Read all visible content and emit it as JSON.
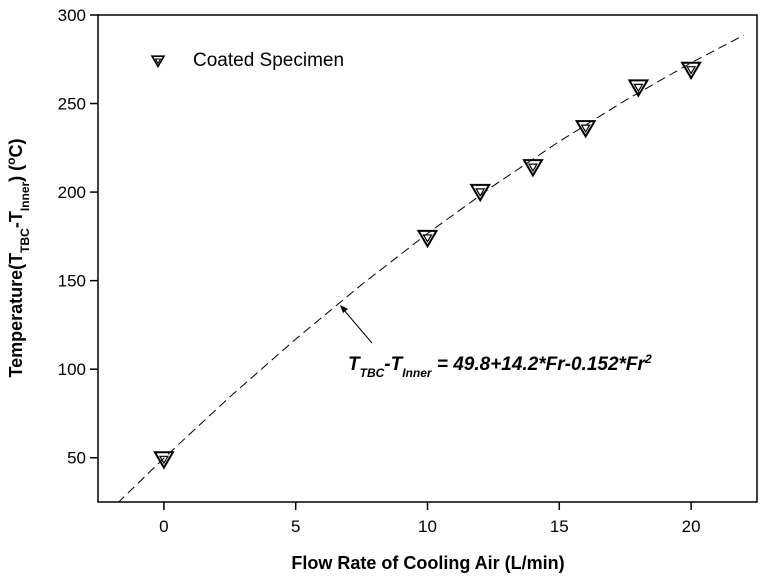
{
  "chart_data": {
    "type": "scatter",
    "x_label": "Flow Rate of Cooling Air (L/min)",
    "y_label_parts": [
      "Temperature(T",
      "TBC",
      "-T",
      "Inner",
      ") (",
      "o",
      "C)"
    ],
    "xlim": [
      -2.5,
      22.5
    ],
    "xticks": [
      0,
      5,
      10,
      15,
      20
    ],
    "ylim": [
      25,
      300
    ],
    "yticks": [
      50,
      100,
      150,
      200,
      250,
      300
    ],
    "series": [
      {
        "name": "Coated Specimen",
        "color": "#000000",
        "marker": "triangle-down",
        "x": [
          0,
          10,
          12,
          14,
          16,
          18,
          20
        ],
        "values": [
          49,
          174,
          200,
          214,
          236,
          259,
          269
        ]
      },
      {
        "type": "line",
        "dash": true,
        "color": "#000000",
        "x": [
          -1.75,
          0,
          2.5,
          5,
          7.5,
          10,
          12.5,
          15,
          17.5,
          20,
          22
        ],
        "values": [
          24.5,
          49.8,
          84.35,
          117,
          147.75,
          176.6,
          203.55,
          228.6,
          251.75,
          273,
          288.6
        ]
      }
    ],
    "annotation_parts": [
      "T",
      "TBC",
      "-T",
      "Inner",
      " = 49.8+14.2*Fr-0.152*Fr",
      "2"
    ]
  }
}
